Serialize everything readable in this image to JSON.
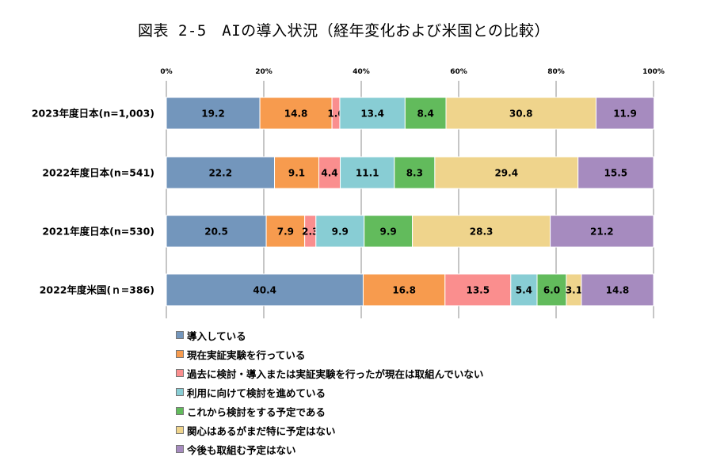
{
  "title": "図表 2-5　AIの導入状況（経年変化および米国との比較）",
  "chart_data": {
    "type": "bar",
    "orientation": "horizontal",
    "stacked": true,
    "percent_axis": true,
    "xlim": [
      0,
      100
    ],
    "x_ticks": [
      "0%",
      "20%",
      "40%",
      "60%",
      "80%",
      "100%"
    ],
    "grid": true,
    "legend_position": "bottom",
    "categories": [
      "2023年度日本(n=1,003)",
      "2022年度日本(n=541)",
      "2021年度日本(n=530)",
      "2022年度米国(ｎ=386)"
    ],
    "series": [
      {
        "name": "導入している",
        "color": "#7396bc",
        "values": [
          19.2,
          22.2,
          20.5,
          40.4
        ]
      },
      {
        "name": "現在実証実験を行っている",
        "color": "#f79b4e",
        "values": [
          14.8,
          9.1,
          7.9,
          16.8
        ]
      },
      {
        "name": "過去に検討・導入または実証実験を行ったが現在は取組んでいない",
        "color": "#fa8e8e",
        "values": [
          1.6,
          4.4,
          2.3,
          13.5
        ]
      },
      {
        "name": "利用に向けて検討を進めている",
        "color": "#88cdd4",
        "values": [
          13.4,
          11.1,
          9.9,
          5.4
        ]
      },
      {
        "name": "これから検討をする予定である",
        "color": "#62bb5c",
        "values": [
          8.4,
          8.3,
          9.9,
          6.0
        ]
      },
      {
        "name": "関心はあるがまだ特に予定はない",
        "color": "#efd48c",
        "values": [
          30.8,
          29.4,
          28.3,
          3.1
        ]
      },
      {
        "name": "今後も取組む予定はない",
        "color": "#a68bbf",
        "values": [
          11.9,
          15.5,
          21.2,
          14.8
        ]
      }
    ]
  }
}
